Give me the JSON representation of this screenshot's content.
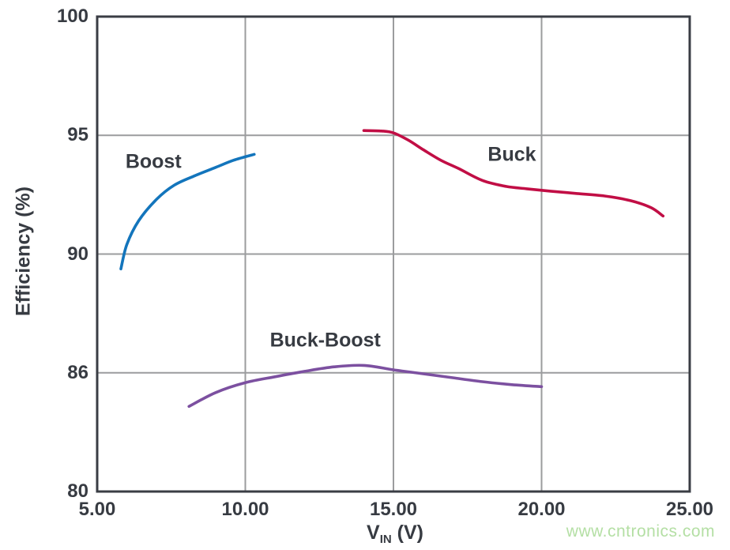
{
  "watermark": {
    "text": "www.cntronics.com",
    "color": "#b4dfa4"
  },
  "chart_data": {
    "type": "line",
    "title": "",
    "xlabel": {
      "base": "V",
      "sub": "IN",
      "unit": " (V)",
      "text": "VIN (V)"
    },
    "ylabel": "Efficiency (%)",
    "x_axis": {
      "min": 5,
      "max": 25,
      "tick_values": [
        5,
        10,
        15,
        20,
        25
      ],
      "tick_labels": [
        "5.00",
        "10.00",
        "15.00",
        "20.00",
        "25.00"
      ]
    },
    "y_axis": {
      "tick_values": [
        100,
        95,
        90,
        86,
        80
      ],
      "tick_labels": [
        "100",
        "95",
        "90",
        "86",
        "80"
      ],
      "spacing": "uniform-pixel-ticks"
    },
    "grid": true,
    "legend_position": "inline-curve-labels",
    "colors": {
      "axis": "#3a3d44",
      "grid": "#9b9c9e",
      "text": "#373b42"
    },
    "series": [
      {
        "name": "Boost",
        "color": "#1375bc",
        "label_at": {
          "x": 6.9,
          "y": 93.9
        },
        "points": [
          [
            5.8,
            89.5
          ],
          [
            6.0,
            90.4
          ],
          [
            6.4,
            91.4
          ],
          [
            7.0,
            92.3
          ],
          [
            7.6,
            92.9
          ],
          [
            8.3,
            93.3
          ],
          [
            9.0,
            93.65
          ],
          [
            9.6,
            93.95
          ],
          [
            10.3,
            94.2
          ]
        ]
      },
      {
        "name": "Buck",
        "color": "#c10e45",
        "label_at": {
          "x": 19.0,
          "y": 94.2
        },
        "points": [
          [
            14.0,
            95.2
          ],
          [
            14.6,
            95.18
          ],
          [
            15.0,
            95.1
          ],
          [
            15.5,
            94.8
          ],
          [
            16.0,
            94.4
          ],
          [
            16.6,
            93.95
          ],
          [
            17.2,
            93.6
          ],
          [
            18.0,
            93.1
          ],
          [
            18.8,
            92.85
          ],
          [
            19.5,
            92.75
          ],
          [
            20.3,
            92.65
          ],
          [
            21.2,
            92.55
          ],
          [
            22.1,
            92.45
          ],
          [
            23.0,
            92.25
          ],
          [
            23.7,
            91.95
          ],
          [
            24.1,
            91.6
          ]
        ]
      },
      {
        "name": "Buck-Boost",
        "color": "#7c50a0",
        "label_at": {
          "x": 12.7,
          "y": 87.1
        },
        "points": [
          [
            8.1,
            84.3
          ],
          [
            9.0,
            85.0
          ],
          [
            10.0,
            85.5
          ],
          [
            11.0,
            85.8
          ],
          [
            12.0,
            86.05
          ],
          [
            13.0,
            86.2
          ],
          [
            14.0,
            86.25
          ],
          [
            15.0,
            86.1
          ],
          [
            16.0,
            85.95
          ],
          [
            17.0,
            85.75
          ],
          [
            18.0,
            85.55
          ],
          [
            19.0,
            85.4
          ],
          [
            20.0,
            85.3
          ]
        ]
      }
    ]
  }
}
